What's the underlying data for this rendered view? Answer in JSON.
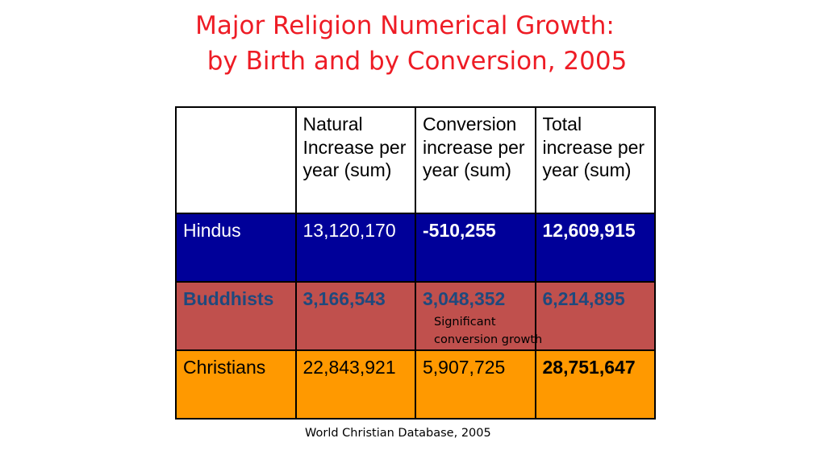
{
  "title": {
    "line1": "Major Religion Numerical Growth:",
    "line2": "by Birth and by Conversion, 2005"
  },
  "table": {
    "headers": [
      "",
      "Natural Increase per year (sum)",
      "Conversion increase per year (sum)",
      "Total increase per year (sum)"
    ],
    "rows": [
      {
        "religion": "Hindus",
        "natural": "13,120,170",
        "conversion": "-510,255",
        "total": "12,609,915"
      },
      {
        "religion": "Buddhists",
        "natural": "3,166,543",
        "conversion": "3,048,352",
        "total": "6,214,895"
      },
      {
        "religion": "Christians",
        "natural": "22,843,921",
        "conversion": "5,907,725",
        "total": "28,751,647"
      }
    ]
  },
  "note": {
    "line1": "Significant",
    "line2": "conversion growth"
  },
  "source": "World Christian Database, 2005",
  "colors": {
    "title": "#ee1c25",
    "hindus_row": "#000099",
    "buddhists_row": "#c0504d",
    "buddhists_text": "#1f497d",
    "christians_row": "#ff9900"
  }
}
